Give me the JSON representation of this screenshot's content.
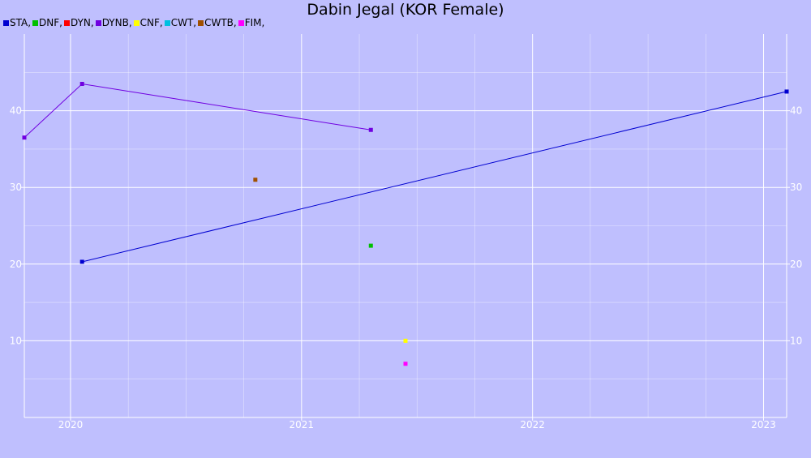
{
  "chart_data": {
    "type": "scatter",
    "title": "Dabin Jegal (KOR Female)",
    "xlabel": "",
    "ylabel": "",
    "xlim": [
      2019.8,
      2023.1
    ],
    "ylim": [
      0,
      50
    ],
    "grid": true,
    "legend_position": "top-left",
    "x_ticks": [
      {
        "value": 2020,
        "label": "2020"
      },
      {
        "value": 2021,
        "label": "2021"
      },
      {
        "value": 2022,
        "label": "2022"
      },
      {
        "value": 2023,
        "label": "2023"
      }
    ],
    "y_ticks": [
      {
        "value": 10,
        "label": "10"
      },
      {
        "value": 20,
        "label": "20"
      },
      {
        "value": 30,
        "label": "30"
      },
      {
        "value": 40,
        "label": "40"
      }
    ],
    "series": [
      {
        "name": "STA",
        "legend_label": "STA,",
        "color": "#0000d0",
        "line": true,
        "points": [
          [
            2020.05,
            20.3
          ],
          [
            2023.1,
            42.5
          ]
        ]
      },
      {
        "name": "DNF",
        "legend_label": "DNF,",
        "color": "#00c000",
        "line": false,
        "points": [
          [
            2021.3,
            22.4
          ]
        ]
      },
      {
        "name": "DYN",
        "legend_label": "DYN,",
        "color": "#ff0000",
        "line": false,
        "points": []
      },
      {
        "name": "DYNB",
        "legend_label": "DYNB,",
        "color": "#7000e0",
        "line": true,
        "points": [
          [
            2019.8,
            36.5
          ],
          [
            2020.05,
            43.5
          ],
          [
            2021.3,
            37.5
          ]
        ]
      },
      {
        "name": "CNF",
        "legend_label": "CNF,",
        "color": "#ffff00",
        "line": false,
        "points": [
          [
            2021.45,
            10.0
          ]
        ]
      },
      {
        "name": "CWT",
        "legend_label": "CWT,",
        "color": "#00c0e0",
        "line": false,
        "points": []
      },
      {
        "name": "CWTB",
        "legend_label": "CWTB,",
        "color": "#a05000",
        "line": false,
        "points": [
          [
            2020.8,
            31.0
          ]
        ]
      },
      {
        "name": "FIM",
        "legend_label": "FIM,",
        "color": "#ff00ff",
        "line": false,
        "points": [
          [
            2021.45,
            7.0
          ]
        ]
      }
    ]
  }
}
